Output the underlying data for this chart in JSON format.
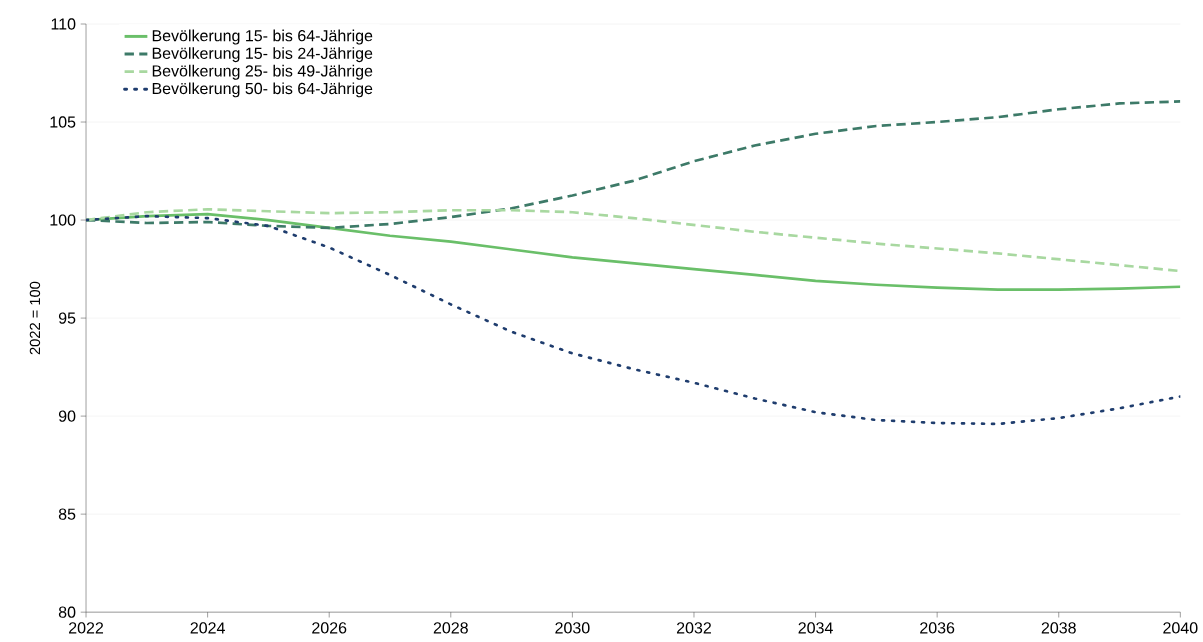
{
  "chart_data": {
    "type": "line",
    "ylabel": "2022 = 100",
    "x": [
      2022,
      2023,
      2024,
      2025,
      2026,
      2027,
      2028,
      2029,
      2030,
      2031,
      2032,
      2033,
      2034,
      2035,
      2036,
      2037,
      2038,
      2039,
      2040
    ],
    "series": [
      {
        "name": "Bevölkerung 15- bis 64-Jährige",
        "color": "#6abf69",
        "line_style": "solid",
        "values": [
          100,
          100.2,
          100.3,
          100.0,
          99.6,
          99.2,
          98.9,
          98.5,
          98.1,
          97.8,
          97.5,
          97.2,
          96.9,
          96.7,
          96.55,
          96.45,
          96.45,
          96.5,
          96.6
        ]
      },
      {
        "name": "Bevölkerung 15- bis 24-Jährige",
        "color": "#3d7a68",
        "line_style": "dashed",
        "values": [
          100,
          99.85,
          99.9,
          99.7,
          99.6,
          99.8,
          100.15,
          100.6,
          101.25,
          102.0,
          103.0,
          103.8,
          104.4,
          104.8,
          105.0,
          105.25,
          105.65,
          105.95,
          106.05
        ]
      },
      {
        "name": "Bevölkerung 25- bis 49-Jährige",
        "color": "#a8d8a0",
        "line_style": "dashed",
        "values": [
          100,
          100.4,
          100.55,
          100.45,
          100.35,
          100.4,
          100.5,
          100.5,
          100.4,
          100.1,
          99.75,
          99.4,
          99.1,
          98.8,
          98.55,
          98.3,
          98.0,
          97.7,
          97.4
        ]
      },
      {
        "name": "Bevölkerung 50- bis 64-Jährige",
        "color": "#1f3d6e",
        "line_style": "dotted",
        "values": [
          100,
          100.2,
          100.1,
          99.7,
          98.6,
          97.2,
          95.7,
          94.3,
          93.2,
          92.4,
          91.7,
          90.9,
          90.2,
          89.8,
          89.65,
          89.6,
          89.9,
          90.4,
          91.0
        ]
      }
    ],
    "xlim": [
      2022,
      2040
    ],
    "xticks": [
      2022,
      2024,
      2026,
      2028,
      2030,
      2032,
      2034,
      2036,
      2038,
      2040
    ],
    "ylim": [
      80,
      110
    ],
    "yticks": [
      80,
      85,
      90,
      95,
      100,
      105,
      110
    ],
    "grid": "y",
    "legend": "top left",
    "marker": "none"
  }
}
